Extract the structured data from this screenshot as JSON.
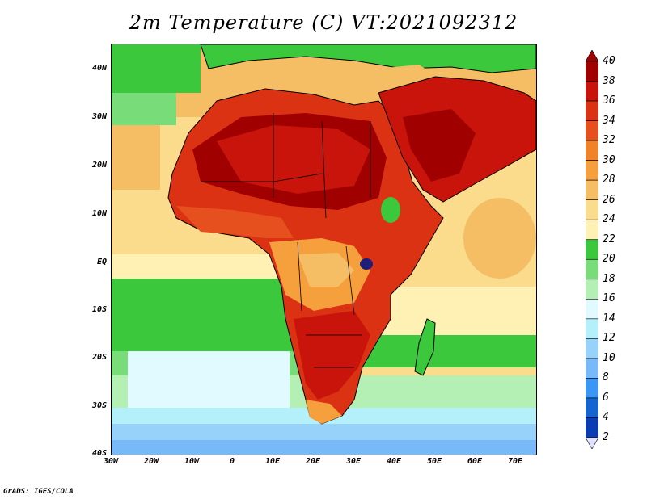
{
  "title": "2m Temperature (C) VT:2021092312",
  "credit": "GrADS: IGES/COLA",
  "map": {
    "variable": "2m Temperature",
    "units": "C",
    "valid_time": "2021092312",
    "lon_range": [
      -30,
      75
    ],
    "lat_range": [
      -40,
      45
    ],
    "lat_labels": [
      "40N",
      "30N",
      "20N",
      "10N",
      "EQ",
      "10S",
      "20S",
      "30S",
      "40S"
    ],
    "lat_values": [
      40,
      30,
      20,
      10,
      0,
      -10,
      -20,
      -30,
      -40
    ],
    "lon_labels": [
      "30W",
      "20W",
      "10W",
      "0",
      "10E",
      "20E",
      "30E",
      "40E",
      "50E",
      "60E",
      "70E"
    ],
    "lon_values": [
      -30,
      -20,
      -10,
      0,
      10,
      20,
      30,
      40,
      50,
      60,
      70
    ]
  },
  "colorbar": {
    "labels": [
      "40",
      "38",
      "36",
      "34",
      "32",
      "30",
      "28",
      "26",
      "24",
      "22",
      "20",
      "18",
      "16",
      "14",
      "12",
      "10",
      "8",
      "6",
      "4",
      "2"
    ],
    "colors": [
      "#a00000",
      "#c8140a",
      "#dc3214",
      "#e6501e",
      "#f08228",
      "#f5a03c",
      "#f5be64",
      "#fadc8c",
      "#fff0b4",
      "#3cc83c",
      "#78dc78",
      "#b4f0b4",
      "#e1faff",
      "#b4f0fa",
      "#96d2fa",
      "#78b9fa",
      "#3c96f5",
      "#1464d2",
      "#0a3cb4",
      "#1e1e78"
    ],
    "top_arrow_color": "#a00000",
    "bottom_arrow_color": "#e1e1ff"
  }
}
